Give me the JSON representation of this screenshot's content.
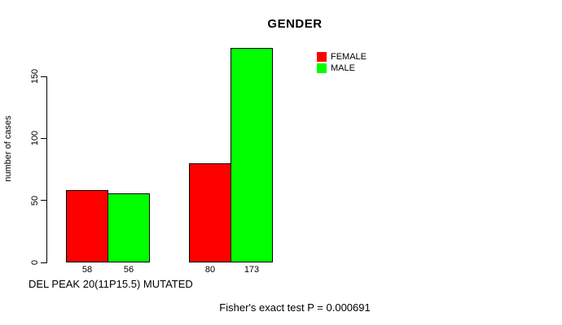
{
  "chart_data": {
    "type": "bar",
    "title": "GENDER",
    "xlabel": "DEL PEAK 20(11P15.5) MUTATED",
    "ylabel": "number of cases",
    "categories": [
      "",
      ""
    ],
    "series": [
      {
        "name": "FEMALE",
        "color": "#ff0000",
        "values": [
          58,
          80
        ]
      },
      {
        "name": "MALE",
        "color": "#00ff00",
        "values": [
          56,
          173
        ]
      }
    ],
    "bar_value_labels": [
      [
        "58",
        "56"
      ],
      [
        "80",
        "173"
      ]
    ],
    "yticks": [
      0,
      50,
      100,
      150
    ],
    "ytick_labels": [
      "0",
      "50",
      "100",
      "150"
    ],
    "ylim": [
      0,
      175
    ],
    "grid": false,
    "legend_position": "right-outside-top",
    "annotation": "Fisher's exact test P = 0.000691"
  }
}
